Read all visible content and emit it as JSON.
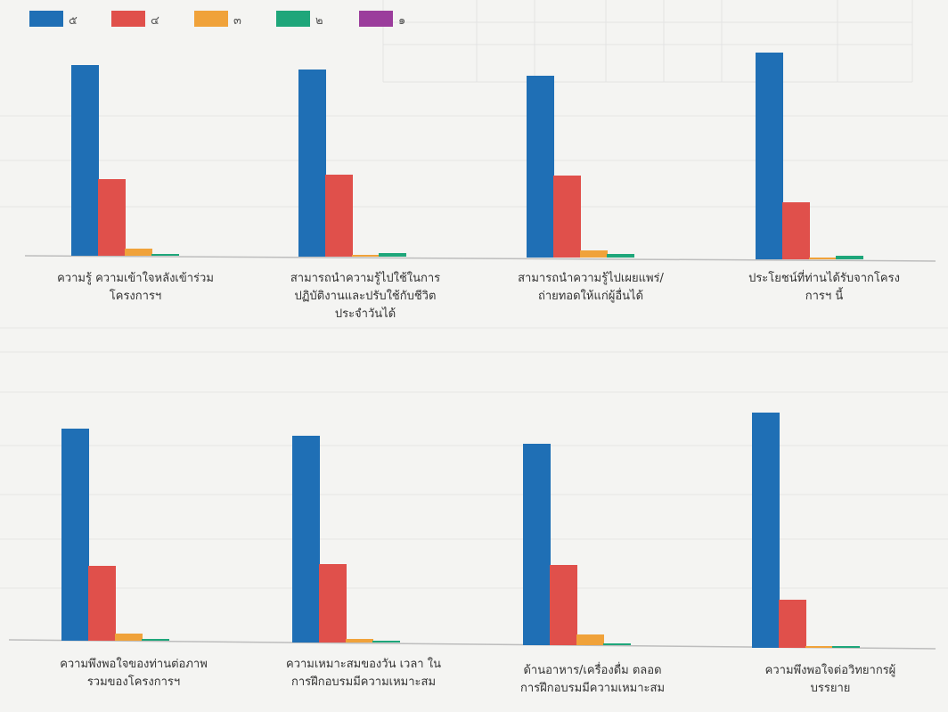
{
  "chart_data": {
    "type": "bar",
    "legend_position": "top-left",
    "grid": true,
    "series": [
      {
        "name": "๕",
        "color": "#1f6fb5"
      },
      {
        "name": "๔",
        "color": "#e0504b"
      },
      {
        "name": "๓",
        "color": "#f0a23a"
      },
      {
        "name": "๒",
        "color": "#1ea67a"
      },
      {
        "name": "๑",
        "color": "#9b3d9c"
      }
    ],
    "categories": [
      {
        "label_lines": [
          "ความรู้ ความเข้าใจหลังเข้าร่วม",
          "โครงการฯ"
        ],
        "values": [
          107,
          43,
          4,
          1,
          0
        ]
      },
      {
        "label_lines": [
          "สามารถนำความรู้ไปใช้ในการ",
          "ปฏิบัติงานและปรับใช้กับชีวิต",
          "ประจำวันได้"
        ],
        "values": [
          105,
          46,
          1,
          2,
          0
        ]
      },
      {
        "label_lines": [
          "สามารถนำความรู้ไปเผยแพร่/",
          "ถ่ายทอดให้แก่ผู้อื่นได้"
        ],
        "values": [
          102,
          46,
          4,
          2,
          0
        ]
      },
      {
        "label_lines": [
          "ประโยชน์ที่ท่านได้รับจากโครง",
          "การฯ นี้"
        ],
        "values": [
          116,
          32,
          1,
          2,
          0
        ]
      },
      {
        "label_lines": [
          "ความพึงพอใจของท่านต่อภาพ",
          "รวมของโครงการฯ"
        ],
        "values": [
          119,
          42,
          4,
          1,
          0
        ]
      },
      {
        "label_lines": [
          "ความเหมาะสมของวัน เวลา ใน",
          "การฝึกอบรมมีความเหมาะสม"
        ],
        "values": [
          116,
          44,
          2,
          1,
          0
        ]
      },
      {
        "label_lines": [
          "ด้านอาหาร/เครื่องดื่ม ตลอด",
          "การฝึกอบรมมีความเหมาะสม"
        ],
        "values": [
          113,
          45,
          6,
          1,
          0
        ]
      },
      {
        "label_lines": [
          "ความพึงพอใจต่อวิทยากรผู้",
          "บรรยาย"
        ],
        "values": [
          132,
          27,
          1,
          1,
          0
        ]
      }
    ]
  }
}
